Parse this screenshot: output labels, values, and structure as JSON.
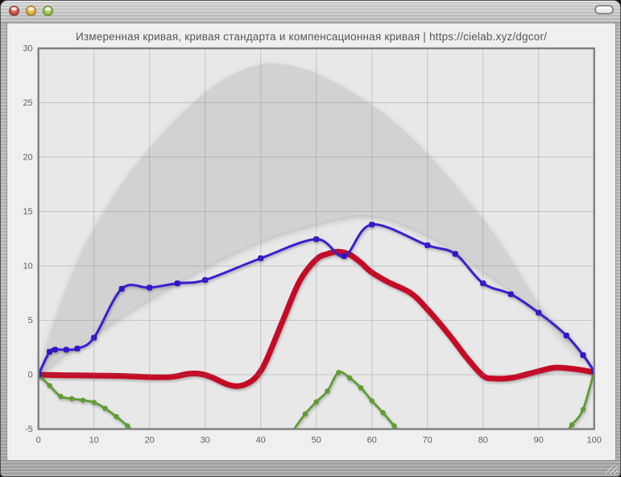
{
  "window": {
    "controls": [
      {
        "name": "close-button",
        "color": "#bb453a"
      },
      {
        "name": "minimize-button",
        "color": "#d89e2e"
      },
      {
        "name": "zoom-button",
        "color": "#8cba42"
      }
    ],
    "toolbar_button": {
      "name": "toolbar-toggle-button"
    }
  },
  "chart_data": {
    "type": "line",
    "title": "Измеренная кривая, кривая стандарта и компенсационная кривая | https://cielab.xyz/dgcor/",
    "xlabel": "",
    "ylabel": "",
    "xlim": [
      0,
      100
    ],
    "ylim": [
      -5,
      30
    ],
    "x_ticks": [
      0,
      10,
      20,
      30,
      40,
      50,
      60,
      70,
      80,
      90,
      100
    ],
    "y_ticks": [
      -5,
      0,
      5,
      10,
      15,
      20,
      25,
      30
    ],
    "grid": true,
    "legend": "none",
    "colors": {
      "plot_bg": "#e9e8e8",
      "band_fill": "#d3d1d2",
      "grid": "rgba(120,120,120,0.32)",
      "axis_box": "#7f7f7f",
      "tick_text": "#5c6066",
      "measured": "#381fd2",
      "measured_marker": "#2f15c8",
      "compensation": "#c50a26",
      "deviation": "#5f9d33"
    },
    "series": {
      "standard_band": {
        "role": "кривая стандарта (серая область с верхней границей допуска)",
        "type": "area",
        "lower": [
          [
            0,
            0
          ],
          [
            2.5,
            1.0
          ],
          [
            5,
            2.0
          ],
          [
            10,
            3.7
          ],
          [
            15,
            5.4
          ],
          [
            20,
            7.0
          ],
          [
            25,
            8.5
          ],
          [
            30,
            9.9
          ],
          [
            35,
            11.2
          ],
          [
            40,
            12.3
          ],
          [
            45,
            13.2
          ],
          [
            50,
            13.9
          ],
          [
            55,
            14.5
          ],
          [
            58,
            14.7
          ],
          [
            62,
            14.5
          ],
          [
            65,
            14.0
          ],
          [
            70,
            12.9
          ],
          [
            75,
            11.4
          ],
          [
            80,
            9.6
          ],
          [
            85,
            7.8
          ],
          [
            90,
            5.8
          ],
          [
            95,
            3.1
          ],
          [
            100,
            0.45
          ]
        ],
        "upper": [
          [
            0,
            0
          ],
          [
            1.5,
            2.6
          ],
          [
            4,
            6.4
          ],
          [
            7,
            10.3
          ],
          [
            10,
            13.4
          ],
          [
            15,
            17.5
          ],
          [
            20,
            20.8
          ],
          [
            25,
            23.6
          ],
          [
            30,
            25.9
          ],
          [
            35,
            27.6
          ],
          [
            40,
            28.5
          ],
          [
            43,
            28.6
          ],
          [
            47,
            28.2
          ],
          [
            50,
            27.7
          ],
          [
            55,
            26.4
          ],
          [
            60,
            24.8
          ],
          [
            65,
            22.8
          ],
          [
            70,
            20.3
          ],
          [
            75,
            17.4
          ],
          [
            80,
            14.3
          ],
          [
            85,
            10.6
          ],
          [
            90,
            6.5
          ],
          [
            95,
            3.6
          ],
          [
            100,
            0.5
          ]
        ]
      },
      "measured_curve": {
        "role": "измеренная кривая",
        "type": "line",
        "markers": true,
        "points": [
          [
            0,
            0
          ],
          [
            2,
            2.1
          ],
          [
            3,
            2.3
          ],
          [
            5,
            2.3
          ],
          [
            7,
            2.4
          ],
          [
            10,
            3.4
          ],
          [
            15,
            7.9
          ],
          [
            20,
            8.0
          ],
          [
            25,
            8.4
          ],
          [
            30,
            8.7
          ],
          [
            40,
            10.7
          ],
          [
            50,
            12.45
          ],
          [
            55,
            10.9
          ],
          [
            60,
            13.8
          ],
          [
            70,
            11.9
          ],
          [
            75,
            11.1
          ],
          [
            80,
            8.4
          ],
          [
            85,
            7.4
          ],
          [
            90,
            5.7
          ],
          [
            95,
            3.6
          ],
          [
            98,
            1.8
          ],
          [
            100,
            0.3
          ]
        ]
      },
      "compensation_curve": {
        "role": "компенсационная кривая",
        "type": "line",
        "markers": false,
        "points": [
          [
            0,
            0
          ],
          [
            5,
            -0.05
          ],
          [
            10,
            -0.08
          ],
          [
            15,
            -0.12
          ],
          [
            20,
            -0.22
          ],
          [
            24,
            -0.2
          ],
          [
            27,
            0.08
          ],
          [
            29,
            0.08
          ],
          [
            31,
            -0.2
          ],
          [
            34,
            -0.9
          ],
          [
            36,
            -1.05
          ],
          [
            38,
            -0.7
          ],
          [
            39.5,
            0
          ],
          [
            41,
            1.3
          ],
          [
            44,
            5.0
          ],
          [
            47,
            8.6
          ],
          [
            50,
            10.6
          ],
          [
            52,
            11.1
          ],
          [
            54,
            11.3
          ],
          [
            56,
            11.05
          ],
          [
            58,
            10.3
          ],
          [
            60,
            9.4
          ],
          [
            63,
            8.5
          ],
          [
            67,
            7.5
          ],
          [
            70,
            6.0
          ],
          [
            74,
            3.6
          ],
          [
            77,
            1.6
          ],
          [
            80,
            -0.1
          ],
          [
            82,
            -0.35
          ],
          [
            85,
            -0.3
          ],
          [
            88,
            0.05
          ],
          [
            91,
            0.45
          ],
          [
            93,
            0.65
          ],
          [
            96,
            0.55
          ],
          [
            98,
            0.4
          ],
          [
            100,
            0.2
          ]
        ]
      },
      "deviation_curve": {
        "role": "отклонение от стандарта (зелёная кривая, выходит за нижнюю границу)",
        "type": "line",
        "markers": true,
        "segments": [
          [
            [
              0,
              0
            ],
            [
              2,
              -1.0
            ],
            [
              4,
              -2.0
            ],
            [
              6,
              -2.2
            ],
            [
              8,
              -2.35
            ],
            [
              10,
              -2.55
            ],
            [
              12,
              -3.1
            ],
            [
              14,
              -3.85
            ],
            [
              16,
              -4.7
            ],
            [
              17.2,
              -5.3
            ]
          ],
          [
            [
              45.6,
              -5.3
            ],
            [
              48,
              -3.6
            ],
            [
              50,
              -2.5
            ],
            [
              52,
              -1.5
            ],
            [
              54,
              0.2
            ],
            [
              56,
              -0.3
            ],
            [
              58,
              -1.2
            ],
            [
              60,
              -2.4
            ],
            [
              62,
              -3.5
            ],
            [
              64,
              -4.7
            ],
            [
              65,
              -5.3
            ]
          ],
          [
            [
              95,
              -5.3
            ],
            [
              96,
              -4.6
            ],
            [
              98,
              -3.2
            ],
            [
              100,
              0.3
            ]
          ]
        ]
      }
    }
  }
}
